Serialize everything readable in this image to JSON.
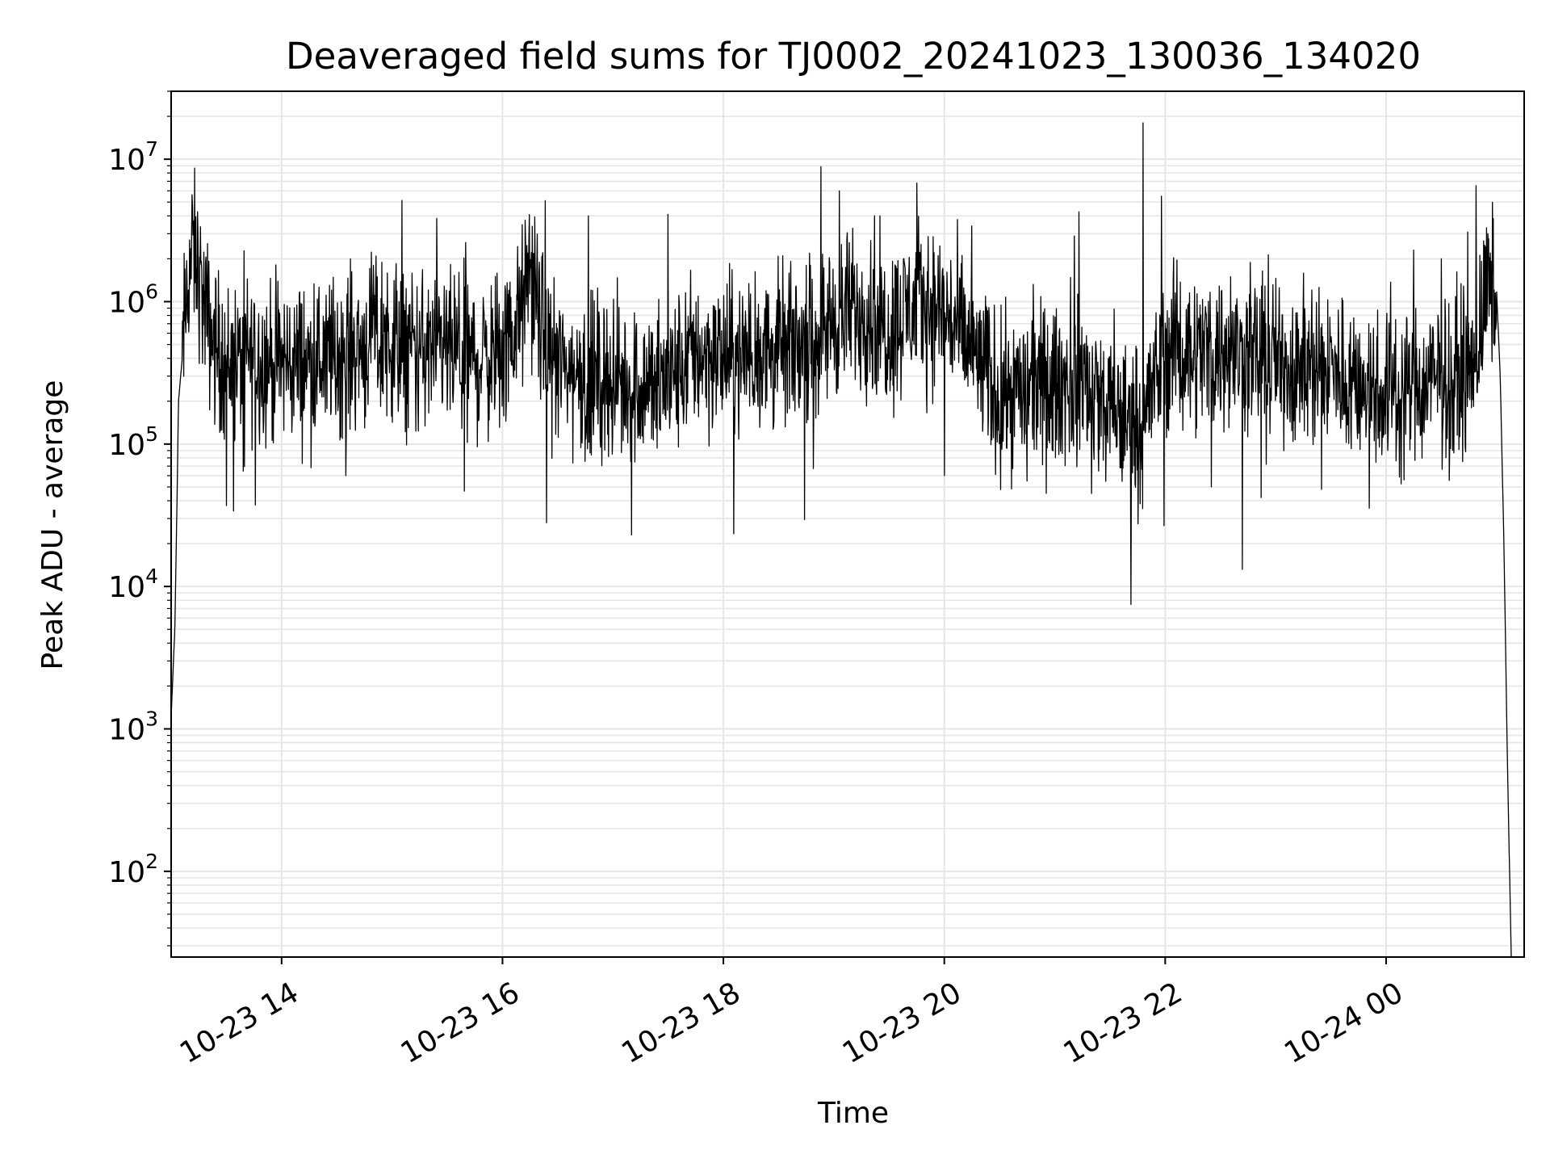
{
  "chart_data": {
    "type": "line",
    "title": "Deaveraged field sums for TJ0002_20241023_130036_134020",
    "xlabel": "Time",
    "ylabel": "Peak ADU - average",
    "yscale": "log",
    "xlim": [
      "2024-10-23 13:00",
      "2024-10-24 01:15"
    ],
    "ylim": [
      25,
      30000000
    ],
    "grid": true,
    "line_color": "#000000",
    "x_ticks": [
      {
        "value": "2024-10-23 14:00",
        "label": "10-23 14"
      },
      {
        "value": "2024-10-23 16:00",
        "label": "10-23 16"
      },
      {
        "value": "2024-10-23 18:00",
        "label": "10-23 18"
      },
      {
        "value": "2024-10-23 20:00",
        "label": "10-23 20"
      },
      {
        "value": "2024-10-23 22:00",
        "label": "10-23 22"
      },
      {
        "value": "2024-10-24 00:00",
        "label": "10-24 00"
      }
    ],
    "y_ticks": [
      {
        "value": 100,
        "base": "10",
        "exp": "2"
      },
      {
        "value": 1000,
        "base": "10",
        "exp": "3"
      },
      {
        "value": 10000,
        "base": "10",
        "exp": "4"
      },
      {
        "value": 100000,
        "base": "10",
        "exp": "5"
      },
      {
        "value": 1000000,
        "base": "10",
        "exp": "6"
      },
      {
        "value": 10000000,
        "base": "10",
        "exp": "7"
      }
    ],
    "series": [
      {
        "x": [
          "2024-10-23 13:00",
          "2024-10-23 13:01",
          "2024-10-23 13:02",
          "2024-10-23 13:03",
          "2024-10-23 13:04",
          "2024-10-23 13:06",
          "2024-10-23 13:08",
          "2024-10-23 13:10",
          "2024-10-23 13:12",
          "2024-10-23 13:15",
          "2024-10-23 13:18",
          "2024-10-23 13:20",
          "2024-10-23 13:25",
          "2024-10-23 13:30",
          "2024-10-23 13:35",
          "2024-10-23 13:40",
          "2024-10-23 13:45",
          "2024-10-23 13:50",
          "2024-10-23 14:00",
          "2024-10-23 14:15",
          "2024-10-23 14:30",
          "2024-10-23 14:45",
          "2024-10-23 15:00",
          "2024-10-23 15:15",
          "2024-10-23 15:30",
          "2024-10-23 15:45",
          "2024-10-23 16:00",
          "2024-10-23 16:10",
          "2024-10-23 16:15",
          "2024-10-23 16:20",
          "2024-10-23 16:30",
          "2024-10-23 16:45",
          "2024-10-23 17:00",
          "2024-10-23 17:15",
          "2024-10-23 17:30",
          "2024-10-23 17:45",
          "2024-10-23 18:00",
          "2024-10-23 18:30",
          "2024-10-23 18:45",
          "2024-10-23 19:00",
          "2024-10-23 19:15",
          "2024-10-23 19:30",
          "2024-10-23 19:45",
          "2024-10-23 20:00",
          "2024-10-23 20:15",
          "2024-10-23 20:30",
          "2024-10-23 20:45",
          "2024-10-23 21:00",
          "2024-10-23 21:15",
          "2024-10-23 21:30",
          "2024-10-23 21:45",
          "2024-10-23 21:50",
          "2024-10-23 22:00",
          "2024-10-23 22:30",
          "2024-10-23 23:00",
          "2024-10-23 23:30",
          "2024-10-24 00:00",
          "2024-10-24 00:30",
          "2024-10-24 00:40",
          "2024-10-24 00:50",
          "2024-10-24 00:55",
          "2024-10-24 01:00",
          "2024-10-24 01:02",
          "2024-10-24 01:04",
          "2024-10-24 01:06",
          "2024-10-24 01:08"
        ],
        "y": [
          1200,
          2500,
          5000,
          28000,
          200000,
          400000,
          900000,
          1700000,
          2300000,
          1600000,
          900000,
          700000,
          450000,
          380000,
          360000,
          400000,
          420000,
          380000,
          370000,
          380000,
          420000,
          500000,
          520000,
          450000,
          430000,
          400000,
          420000,
          800000,
          1800000,
          700000,
          350000,
          300000,
          280000,
          260000,
          270000,
          450000,
          400000,
          450000,
          500000,
          750000,
          900000,
          650000,
          1000000,
          850000,
          450000,
          220000,
          250000,
          250000,
          300000,
          160000,
          140000,
          180000,
          450000,
          450000,
          380000,
          330000,
          230000,
          280000,
          300000,
          500000,
          1200000,
          1200000,
          300000,
          20000,
          500,
          25
        ],
        "spikes": [
          {
            "x": "2024-10-23 13:12",
            "y": 3300000
          },
          {
            "x": "2024-10-23 13:30",
            "y": 37000
          },
          {
            "x": "2024-10-23 14:50",
            "y": 1800000
          },
          {
            "x": "2024-10-23 14:35",
            "y": 60000
          },
          {
            "x": "2024-10-23 15:40",
            "y": 2600000
          },
          {
            "x": "2024-10-23 16:24",
            "y": 28000
          },
          {
            "x": "2024-10-23 17:10",
            "y": 23000
          },
          {
            "x": "2024-10-23 17:30",
            "y": 4100000
          },
          {
            "x": "2024-10-23 18:45",
            "y": 1800000
          },
          {
            "x": "2024-10-23 19:03",
            "y": 6000000
          },
          {
            "x": "2024-10-23 19:22",
            "y": 4000000
          },
          {
            "x": "2024-10-23 19:45",
            "y": 6800000
          },
          {
            "x": "2024-10-23 20:00",
            "y": 60000
          },
          {
            "x": "2024-10-23 20:15",
            "y": 3400000
          },
          {
            "x": "2024-10-23 20:45",
            "y": 55000
          },
          {
            "x": "2024-10-23 21:20",
            "y": 45000
          },
          {
            "x": "2024-10-23 21:48",
            "y": 18000000
          },
          {
            "x": "2024-10-23 21:58",
            "y": 5500000
          },
          {
            "x": "2024-10-23 22:25",
            "y": 50000
          },
          {
            "x": "2024-10-23 23:25",
            "y": 48000
          },
          {
            "x": "2024-10-24 00:15",
            "y": 2300000
          },
          {
            "x": "2024-10-24 00:30",
            "y": 2000000
          }
        ]
      }
    ]
  }
}
